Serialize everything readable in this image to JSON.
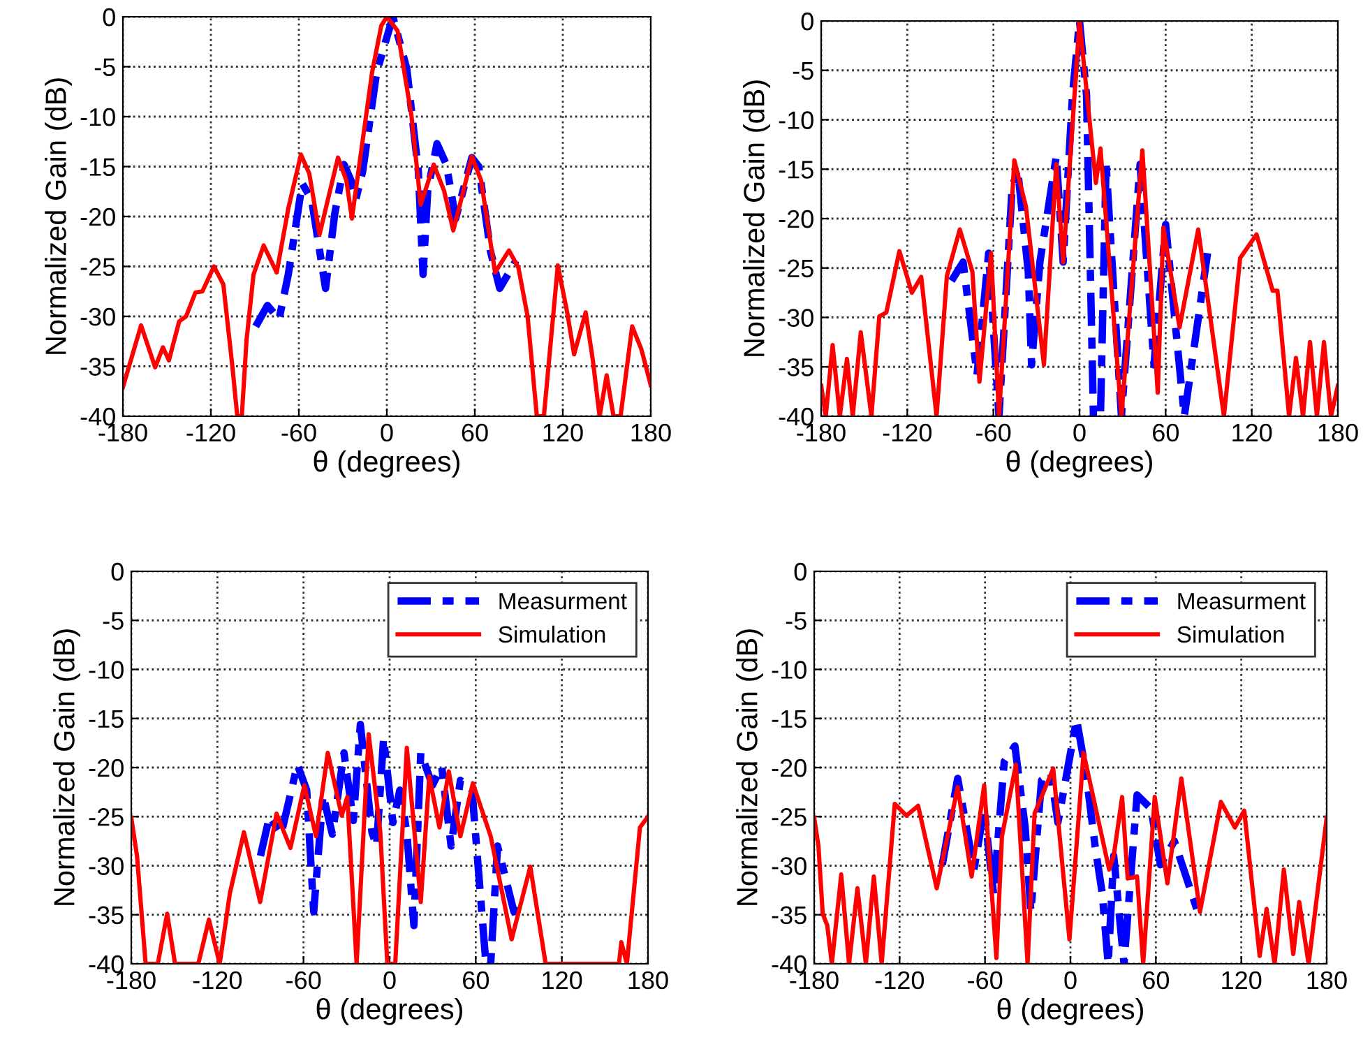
{
  "chart_data": [
    {
      "type": "line",
      "xlabel": "θ (degrees)",
      "ylabel": "Normalized Gain (dB)",
      "xlim": [
        -180,
        180
      ],
      "xticks": [
        -180,
        -120,
        -60,
        0,
        60,
        120,
        180
      ],
      "ylim": [
        -40,
        0
      ],
      "yticks": [
        -40,
        -35,
        -30,
        -25,
        -20,
        -15,
        -10,
        -5,
        0
      ],
      "grid": true,
      "legend": false,
      "series": [
        {
          "color": "#0000ff",
          "line_style": "dashed",
          "x": [
            -89.4,
            -81.4,
            -73.5,
            -67.2,
            -57.7,
            -51.3,
            -41.8,
            -35.5,
            -29.2,
            -24.4,
            -21.2,
            -16.5,
            -7,
            4.1,
            13.6,
            21.5,
            24.7,
            27.9,
            34.2,
            40.6,
            46.9,
            58,
            62.7,
            70.7,
            77,
            88.1
          ],
          "values": [
            -31,
            -28.9,
            -30.3,
            -25.8,
            -16.7,
            -18.3,
            -27.2,
            -19.7,
            -14.8,
            -16.4,
            -18.3,
            -15.5,
            -5.6,
            0,
            -5.2,
            -15.5,
            -25.8,
            -17.4,
            -12.7,
            -14.8,
            -20.2,
            -14.1,
            -15,
            -23.5,
            -27.2,
            -24.4
          ]
        },
        {
          "color": "#ff0000",
          "line_style": "solid",
          "x": [
            -180,
            -167.6,
            -158,
            -152.7,
            -148.6,
            -141.6,
            -136.9,
            -130.5,
            -125.8,
            -117.9,
            -111.5,
            -105.2,
            -102,
            -98.9,
            -95.7,
            -90.9,
            -84,
            -75.1,
            -67.2,
            -58.6,
            -52.9,
            -45.9,
            -40.2,
            -33.3,
            -27.6,
            -23.8,
            -18.1,
            -10.1,
            -3.8,
            0,
            7.3,
            16.8,
            23.1,
            32,
            39,
            45.3,
            51.6,
            58,
            64.3,
            73.8,
            83.3,
            89.7,
            96,
            102.3,
            107.1,
            116.6,
            123,
            127.7,
            135.6,
            140.4,
            145.1,
            149.9,
            154.6,
            159.4,
            167.3,
            173.6,
            180
          ],
          "values": [
            -37.1,
            -30.9,
            -35.1,
            -33.1,
            -34.4,
            -30.5,
            -30,
            -27.6,
            -27.5,
            -25,
            -26.8,
            -35.2,
            -40,
            -40,
            -32.4,
            -25.8,
            -22.9,
            -25.6,
            -19.2,
            -13.8,
            -15.7,
            -21.8,
            -18.3,
            -14.1,
            -16.4,
            -20.2,
            -14.1,
            -5.6,
            -0.9,
            0,
            -1.4,
            -9.9,
            -18.8,
            -14.8,
            -17.4,
            -21.4,
            -17.8,
            -14,
            -16.4,
            -25.6,
            -23.4,
            -25.1,
            -30,
            -40,
            -40,
            -24.9,
            -29.6,
            -33.8,
            -29.6,
            -34.3,
            -40,
            -35.9,
            -40,
            -40,
            -31,
            -33.3,
            -36.9
          ]
        }
      ]
    },
    {
      "type": "line",
      "xlabel": "θ (degrees)",
      "ylabel": "Normalized Gain (dB)",
      "xlim": [
        -180,
        180
      ],
      "xticks": [
        -180,
        -120,
        -60,
        0,
        60,
        120,
        180
      ],
      "ylim": [
        -40,
        0
      ],
      "yticks": [
        -40,
        -35,
        -30,
        -25,
        -20,
        -15,
        -10,
        -5,
        0
      ],
      "grid": true,
      "legend": false,
      "series": [
        {
          "color": "#0000ff",
          "line_style": "dashed",
          "x": [
            -89.2,
            -81.1,
            -71.4,
            -63.3,
            -56.1,
            -47,
            -43.1,
            -35.7,
            -33.4,
            -27.6,
            -16.2,
            -11.4,
            -4.9,
            0,
            4.9,
            9.7,
            14.6,
            18.5,
            29.2,
            42.2,
            51.9,
            60,
            73,
            89.2
          ],
          "values": [
            -26.3,
            -24.4,
            -35.8,
            -23.5,
            -40,
            -16.9,
            -15,
            -25.4,
            -34.8,
            -24.4,
            -13.7,
            -24.4,
            -7.5,
            0,
            -7.5,
            -40,
            -40,
            -14.5,
            -40,
            -14.5,
            -34.8,
            -20.6,
            -40,
            -23.5
          ]
        },
        {
          "color": "#ff0000",
          "line_style": "solid",
          "x": [
            -180,
            -176.8,
            -172,
            -167,
            -162,
            -158,
            -152.4,
            -145,
            -139.5,
            -134.6,
            -125.5,
            -116.8,
            -110.3,
            -99.6,
            -92.4,
            -83.4,
            -74.6,
            -69.7,
            -61.6,
            -56.1,
            -45.4,
            -37.3,
            -24.8,
            -16.2,
            -11.4,
            0,
            11.4,
            14.6,
            29.2,
            43.8,
            54.5,
            58.4,
            69.7,
            82.7,
            100.6,
            111.9,
            123.3,
            134.6,
            137.9,
            146,
            150.8,
            155.7,
            160.6,
            165.4,
            170.3,
            175.2,
            180
          ],
          "values": [
            -36.9,
            -40,
            -32.8,
            -40,
            -34.2,
            -40,
            -31.5,
            -40,
            -29.9,
            -29.5,
            -23.3,
            -27.5,
            -25.9,
            -40,
            -25.8,
            -21.1,
            -25.4,
            -36.5,
            -23.5,
            -40,
            -14.1,
            -18.8,
            -34.8,
            -14.5,
            -24.4,
            0,
            -16.4,
            -12.9,
            -40,
            -13.1,
            -37.6,
            -20.9,
            -31,
            -21.1,
            -40,
            -24,
            -21.6,
            -27.3,
            -27.3,
            -40,
            -34.1,
            -40,
            -32.5,
            -40,
            -32.5,
            -40,
            -36.9
          ]
        }
      ]
    },
    {
      "type": "line",
      "xlabel": "θ (degrees)",
      "ylabel": "Normalized Gain (dB)",
      "xlim": [
        -180,
        180
      ],
      "xticks": [
        -180,
        -120,
        -60,
        0,
        60,
        120,
        180
      ],
      "ylim": [
        -40,
        0
      ],
      "yticks": [
        -40,
        -35,
        -30,
        -25,
        -20,
        -15,
        -10,
        -5,
        0
      ],
      "grid": true,
      "legend": "top right",
      "series": [
        {
          "name": "Measurment",
          "color": "#0000ff",
          "line_style": "dashed",
          "x": [
            -90,
            -83.7,
            -75.6,
            -64.3,
            -57.8,
            -52.9,
            -46.4,
            -39.9,
            -31.8,
            -25.3,
            -20.4,
            -12.3,
            -9.1,
            -4.2,
            2.3,
            7.1,
            12,
            16.9,
            21.7,
            29.8,
            36.3,
            42.8,
            49.3,
            57.4,
            67.1,
            70.4,
            75.2,
            86.6,
            89.8
          ],
          "values": [
            -29,
            -25,
            -26.8,
            -19.7,
            -22.3,
            -34.7,
            -22.8,
            -26.8,
            -18.5,
            -25.4,
            -15.6,
            -26.6,
            -28,
            -17,
            -25.6,
            -22.3,
            -26.6,
            -36.1,
            -18.5,
            -21.8,
            -19.9,
            -28,
            -21.3,
            -22.3,
            -40,
            -40,
            -28,
            -34.7,
            -33.7
          ]
        },
        {
          "name": "Simulation",
          "color": "#ff0000",
          "line_style": "solid",
          "x": [
            -180,
            -176,
            -170,
            -161.5,
            -155,
            -149.5,
            -133.3,
            -125.9,
            -118.4,
            -111.3,
            -101.5,
            -90.2,
            -78.8,
            -69.1,
            -59.4,
            -51.3,
            -43.1,
            -33.4,
            -29.5,
            -23,
            -14.6,
            -6.5,
            -1.6,
            3.9,
            12,
            21.7,
            27.6,
            34.7,
            41.2,
            49.3,
            58,
            70.4,
            85,
            98,
            108.7,
            159.8,
            161.4,
            165.3,
            174.4,
            180
          ],
          "values": [
            -25.1,
            -29,
            -40,
            -40,
            -34.9,
            -40,
            -40,
            -35.5,
            -40,
            -32.8,
            -26.6,
            -33.7,
            -24.7,
            -28.2,
            -21.8,
            -27,
            -18.5,
            -24.9,
            -23,
            -40,
            -16.6,
            -26.6,
            -40,
            -40,
            -18,
            -33.7,
            -20.9,
            -26.1,
            -20.4,
            -27,
            -21.6,
            -27,
            -37.5,
            -30.1,
            -40,
            -40,
            -37.8,
            -40,
            -26.1,
            -25
          ]
        }
      ]
    },
    {
      "type": "line",
      "xlabel": "θ (degrees)",
      "ylabel": "Normalized Gain (dB)",
      "xlim": [
        -180,
        180
      ],
      "xticks": [
        -180,
        -120,
        -60,
        0,
        60,
        120,
        180
      ],
      "ylim": [
        -40,
        0
      ],
      "yticks": [
        -40,
        -35,
        -30,
        -25,
        -20,
        -15,
        -10,
        -5,
        0
      ],
      "grid": true,
      "legend": "top right",
      "series": [
        {
          "name": "Measurment",
          "color": "#0000ff",
          "line_style": "dashed",
          "x": [
            -90,
            -79.2,
            -67.8,
            -60.6,
            -54,
            -46.5,
            -39,
            -31.8,
            -27.8,
            -20.3,
            -13.7,
            -8.8,
            4.3,
            10.8,
            17.3,
            22.3,
            26.5,
            30.4,
            37.6,
            46.8,
            56.6,
            63.2,
            73,
            89.4
          ],
          "values": [
            -29.9,
            -21.1,
            -30.4,
            -24.2,
            -32.9,
            -19.4,
            -17.8,
            -26.1,
            -34.7,
            -21.3,
            -20.6,
            -25.6,
            -15.1,
            -20.4,
            -28,
            -32.8,
            -40,
            -29,
            -40,
            -22.8,
            -24.2,
            -29.9,
            -27.5,
            -34.7
          ]
        },
        {
          "name": "Simulation",
          "color": "#ff0000",
          "line_style": "solid",
          "x": [
            -180,
            -177,
            -174,
            -170.8,
            -167.6,
            -161,
            -155.5,
            -149.6,
            -143.7,
            -138.1,
            -132.6,
            -123.4,
            -115.2,
            -107,
            -93.9,
            -79.2,
            -69.4,
            -60.6,
            -52,
            -48.1,
            -38.3,
            -30.1,
            -25.2,
            -12.1,
            -0.7,
            9.2,
            27.2,
            30.4,
            36.3,
            40.2,
            46.8,
            51.1,
            59.2,
            68.1,
            77.9,
            91,
            105.7,
            115.5,
            122.1,
            132.9,
            137.8,
            143.4,
            149.9,
            156.5,
            160.7,
            167.3,
            180
          ],
          "values": [
            -25.1,
            -28,
            -34.9,
            -36.1,
            -40,
            -30.9,
            -40,
            -32.3,
            -40,
            -31.1,
            -40,
            -23.7,
            -24.9,
            -23.9,
            -32.3,
            -22,
            -31.1,
            -21.8,
            -39.4,
            -27,
            -19.7,
            -40,
            -24.7,
            -20.1,
            -37.5,
            -18.5,
            -30.4,
            -29,
            -23,
            -31.3,
            -31.1,
            -40,
            -23,
            -31.8,
            -21.1,
            -34.7,
            -23.5,
            -26.1,
            -24.4,
            -39.2,
            -34.4,
            -40,
            -30.4,
            -39,
            -33.7,
            -40,
            -25.1
          ]
        }
      ]
    }
  ]
}
